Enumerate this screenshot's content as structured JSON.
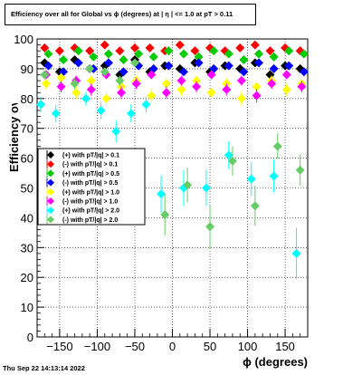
{
  "title": "Efficiency over all for Global vs ϕ (degrees) at |  η | <= 1.0 at pT > 0.11",
  "footer": "Thu Sep 22 14:13:14 2022",
  "chart_data": {
    "type": "scatter",
    "xlabel": "ϕ (degrees)",
    "ylabel": "Efficiency over all (%)",
    "xlim": [
      -180,
      180
    ],
    "ylim": [
      0,
      100
    ],
    "xticks": [
      -150,
      -100,
      -50,
      0,
      50,
      100,
      150
    ],
    "yticks": [
      0,
      10,
      20,
      30,
      40,
      50,
      60,
      70,
      80,
      90,
      100
    ],
    "grid": true,
    "legend_position": "left-middle",
    "series": [
      {
        "name": "(+) with pT/|q| > 0.1",
        "color": "#000000",
        "marker": "diamond",
        "x": [
          -170,
          -150,
          -130,
          -110,
          -90,
          -70,
          -50,
          -30,
          -10,
          10,
          30,
          50,
          70,
          90,
          110,
          130,
          150,
          170
        ],
        "y": [
          92,
          89,
          93,
          90,
          91,
          88,
          93,
          89,
          91,
          90,
          92,
          89,
          91,
          90,
          92,
          88,
          91,
          90
        ]
      },
      {
        "name": "(-) with pT/|q| > 0.1",
        "color": "#ff0000",
        "marker": "diamond",
        "x": [
          -170,
          -150,
          -130,
          -110,
          -90,
          -70,
          -50,
          -30,
          -10,
          10,
          30,
          50,
          70,
          90,
          110,
          130,
          150,
          170
        ],
        "y": [
          97,
          96,
          97,
          96,
          98,
          96,
          97,
          97,
          96,
          98,
          96,
          97,
          96,
          97,
          98,
          96,
          97,
          96
        ]
      },
      {
        "name": "(+) with pT/|q| > 0.5",
        "color": "#00cc00",
        "marker": "diamond",
        "x": [
          -165,
          -145,
          -125,
          -105,
          -85,
          -65,
          -45,
          -25,
          -5,
          15,
          35,
          55,
          75,
          95,
          115,
          135,
          155,
          175
        ],
        "y": [
          95,
          93,
          96,
          94,
          95,
          93,
          95,
          94,
          96,
          95,
          94,
          96,
          95,
          93,
          95,
          94,
          96,
          95
        ]
      },
      {
        "name": "(-) with pT/|q| > 0.5",
        "color": "#0000ff",
        "marker": "diamond",
        "x": [
          -165,
          -145,
          -125,
          -105,
          -85,
          -65,
          -45,
          -25,
          -5,
          15,
          35,
          55,
          75,
          95,
          115,
          135,
          155,
          175
        ],
        "y": [
          91,
          89,
          92,
          90,
          92,
          89,
          91,
          90,
          91,
          89,
          92,
          90,
          91,
          89,
          92,
          90,
          91,
          89
        ]
      },
      {
        "name": "(+) with pT/|q| > 1.0",
        "color": "#ffff00",
        "marker": "diamond",
        "x": [
          -168,
          -148,
          -128,
          -108,
          -88,
          -68,
          -48,
          -28,
          -8,
          12,
          32,
          52,
          72,
          92,
          112,
          132,
          152,
          172
        ],
        "y": [
          85,
          87,
          82,
          86,
          80,
          84,
          86,
          81,
          85,
          83,
          86,
          82,
          85,
          80,
          84,
          86,
          83,
          85
        ]
      },
      {
        "name": "(-) with pT/|q| > 1.0",
        "color": "#ff00ff",
        "marker": "diamond",
        "x": [
          -168,
          -148,
          -128,
          -108,
          -88,
          -68,
          -48,
          -28,
          -8,
          12,
          32,
          52,
          72,
          92,
          112,
          132,
          152,
          172
        ],
        "y": [
          88,
          84,
          86,
          83,
          88,
          82,
          85,
          88,
          82,
          86,
          84,
          88,
          83,
          86,
          81,
          85,
          88,
          84
        ]
      },
      {
        "name": "(+) with pT/|q| > 2.0",
        "color": "#00ffff",
        "marker": "diamond",
        "x": [
          -175,
          -155,
          -115,
          -95,
          -75,
          -55,
          -35,
          -15,
          15,
          45,
          75,
          105,
          135,
          165
        ],
        "y": [
          78,
          75,
          80,
          76,
          69,
          75,
          78,
          48,
          50,
          50,
          61,
          53,
          54,
          28
        ]
      },
      {
        "name": "(-) with pT/|q| > 2.0",
        "color": "#66cc66",
        "marker": "diamond",
        "x": [
          -170,
          -130,
          -110,
          -90,
          -70,
          -50,
          -10,
          20,
          50,
          80,
          110,
          140,
          170
        ],
        "y": [
          88,
          85,
          90,
          89,
          86,
          92,
          41,
          51,
          37,
          59,
          44,
          64,
          56
        ]
      }
    ]
  }
}
